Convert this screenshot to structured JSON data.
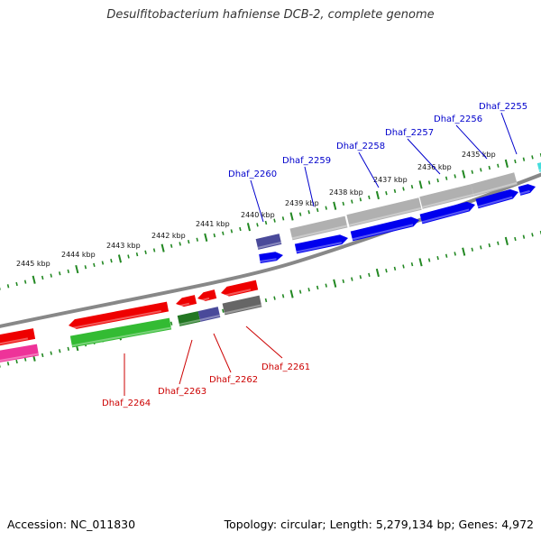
{
  "header": {
    "title": "Desulfitobacterium hafniense DCB-2, complete genome"
  },
  "footer": {
    "accession": "Accession: NC_011830",
    "topology": "Topology: circular; Length: 5,279,134 bp; Genes: 4,972"
  },
  "scale": {
    "ticks": [
      {
        "label": "2435 kbp"
      },
      {
        "label": "2436 kbp"
      },
      {
        "label": "2437 kbp"
      },
      {
        "label": "2438 kbp"
      },
      {
        "label": "2439 kbp"
      },
      {
        "label": "2440 kbp"
      },
      {
        "label": "2441 kbp"
      },
      {
        "label": "2442 kbp"
      },
      {
        "label": "2443 kbp"
      },
      {
        "label": "2444 kbp"
      },
      {
        "label": "2445 kbp"
      }
    ]
  },
  "gene_labels": {
    "forward": [
      {
        "label": "Dhaf_2255"
      },
      {
        "label": "Dhaf_2256"
      },
      {
        "label": "Dhaf_2257"
      },
      {
        "label": "Dhaf_2258"
      },
      {
        "label": "Dhaf_2259"
      },
      {
        "label": "Dhaf_2260"
      }
    ],
    "reverse": [
      {
        "label": "Dhaf_2261"
      },
      {
        "label": "Dhaf_2262"
      },
      {
        "label": "Dhaf_2263"
      },
      {
        "label": "Dhaf_2264"
      }
    ]
  },
  "colors": {
    "forward_label": "#0000cc",
    "reverse_label": "#cc0000",
    "forward_cds": "#0000ee",
    "reverse_cds": "#ee0000",
    "gray_feature": "#b0b0b0",
    "dark_gray_feature": "#666666",
    "purple_feature": "#4a4a9a",
    "green_feature": "#33bb33",
    "dark_green_feature": "#227722",
    "magenta_feature": "#ee3399",
    "cyan_feature": "#44dddd",
    "backbone": "#888888",
    "tick": "#228822"
  }
}
